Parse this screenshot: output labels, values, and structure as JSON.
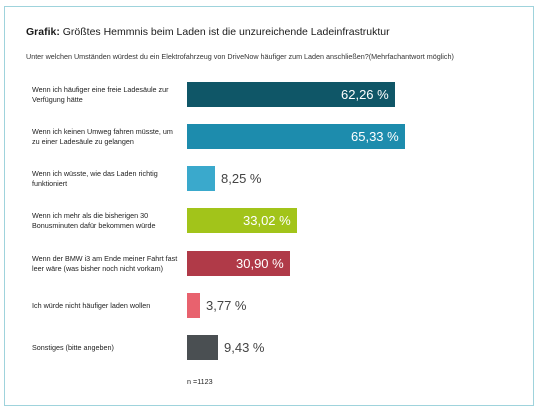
{
  "title": {
    "lead": "Grafik:",
    "text": " Größtes Hemmnis beim Laden ist die unzureichende Ladeinfrastruktur"
  },
  "subtitle": "Unter welchen Umständen würdest du ein Elektrofahrzeug von DriveNow häufiger zum Laden anschließen?(Mehrfachantwort möglich)",
  "note": "n =1123",
  "chart_data": {
    "type": "bar",
    "orientation": "horizontal",
    "categories": [
      "Wenn ich häufiger eine freie Ladesäule zur Verfügung hätte",
      "Wenn ich keinen Umweg fahren müsste, um zu einer Ladesäule zu gelangen",
      "Wenn ich wüsste, wie das Laden richtig funktioniert",
      "Wenn ich mehr als die bisherigen 30 Bonusminuten dafür bekommen würde",
      "Wenn der BMW i3 am Ende meiner Fahrt fast leer wäre (was bisher noch nicht vorkam)",
      "Ich würde nicht häufiger laden wollen",
      "Sonstiges (bitte angeben)"
    ],
    "values": [
      62.26,
      65.33,
      8.25,
      33.02,
      30.9,
      3.77,
      9.43
    ],
    "value_labels": [
      "62,26 %",
      "65,33 %",
      "8,25 %",
      "33,02 %",
      "30,90 %",
      "3,77 %",
      "9,43 %"
    ],
    "colors": [
      "#0f5667",
      "#1d8cad",
      "#3aa9cc",
      "#a2c41a",
      "#b03a48",
      "#e8626e",
      "#4a4f52"
    ],
    "unit": "%",
    "xlim": [
      0,
      100
    ]
  }
}
